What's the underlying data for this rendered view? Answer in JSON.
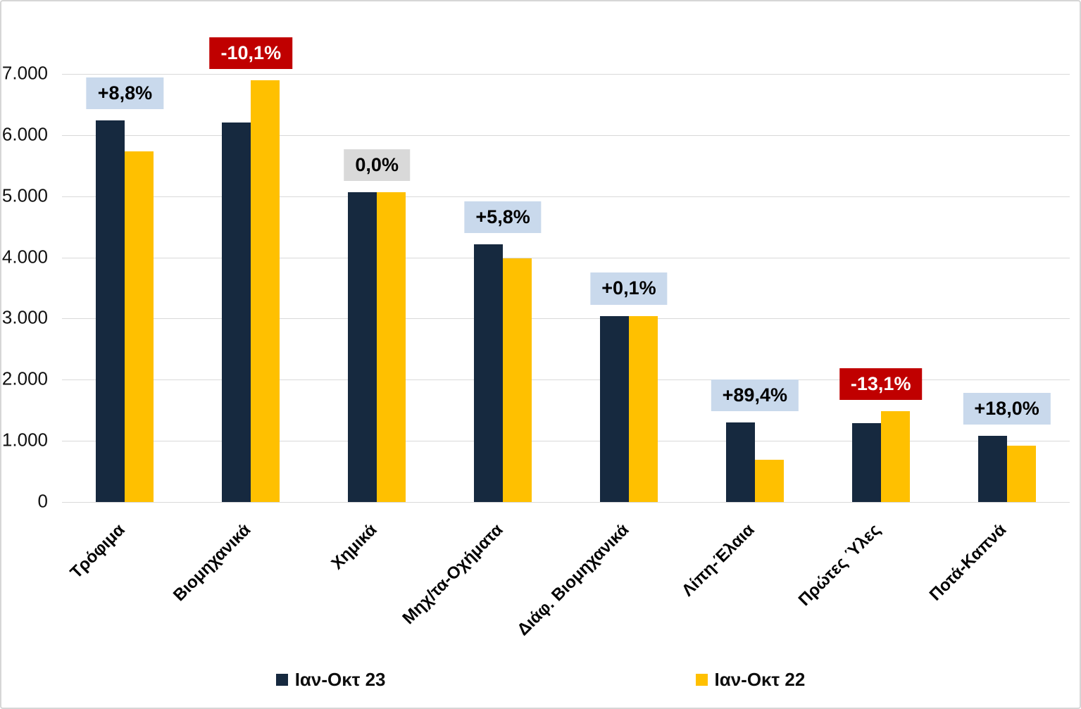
{
  "chart_data": {
    "type": "bar",
    "title": "",
    "xlabel": "",
    "ylabel": "",
    "categories": [
      "Τρόφιμα",
      "Βιομηχανικά",
      "Χημικά",
      "Μηχ/τα-Οχήματα",
      "Διάφ. Βιομηχανικά",
      "Λίπη-Έλαια",
      "Πρώτες Ύλες",
      "Ποτά-Καπνά"
    ],
    "series": [
      {
        "name": "Ιαν-Οκτ 23",
        "color": "#16293F",
        "values": [
          6240,
          6205,
          5070,
          4210,
          3045,
          1305,
          1295,
          1085
        ]
      },
      {
        "name": "Ιαν-Οκτ 22",
        "color": "#FFC000",
        "values": [
          5735,
          6900,
          5070,
          3980,
          3040,
          690,
          1490,
          920
        ]
      }
    ],
    "change_labels": [
      {
        "text": "+8,8%",
        "variant": "positive"
      },
      {
        "text": "-10,1%",
        "variant": "negative"
      },
      {
        "text": "0,0%",
        "variant": "neutral"
      },
      {
        "text": "+5,8%",
        "variant": "positive"
      },
      {
        "text": "+0,1%",
        "variant": "positive"
      },
      {
        "text": "+89,4%",
        "variant": "positive"
      },
      {
        "text": "-13,1%",
        "variant": "negative"
      },
      {
        "text": "+18,0%",
        "variant": "positive"
      }
    ],
    "y_ticks": [
      {
        "label": "7.000",
        "value": 7000
      },
      {
        "label": "6.000",
        "value": 6000
      },
      {
        "label": "5.000",
        "value": 5000
      },
      {
        "label": "4.000",
        "value": 4000
      },
      {
        "label": "3.000",
        "value": 3000
      },
      {
        "label": "2.000",
        "value": 2000
      },
      {
        "label": "1.000",
        "value": 1000
      },
      {
        "label": "0",
        "value": 0
      }
    ],
    "ylim": [
      0,
      7000
    ],
    "grid": true,
    "legend_position": "bottom"
  },
  "colors": {
    "series_1": "#16293F",
    "series_2": "#FFC000",
    "badge_positive_bg": "#C9D9EC",
    "badge_positive_text": "#000000",
    "badge_negative_bg": "#C00000",
    "badge_negative_text": "#FFFFFF",
    "badge_neutral_bg": "#D9D9D9",
    "badge_neutral_text": "#000000",
    "gridline": "#D9D9D9",
    "text": "#111111",
    "background": "#FFFFFF",
    "border": "#D6D6D6"
  }
}
